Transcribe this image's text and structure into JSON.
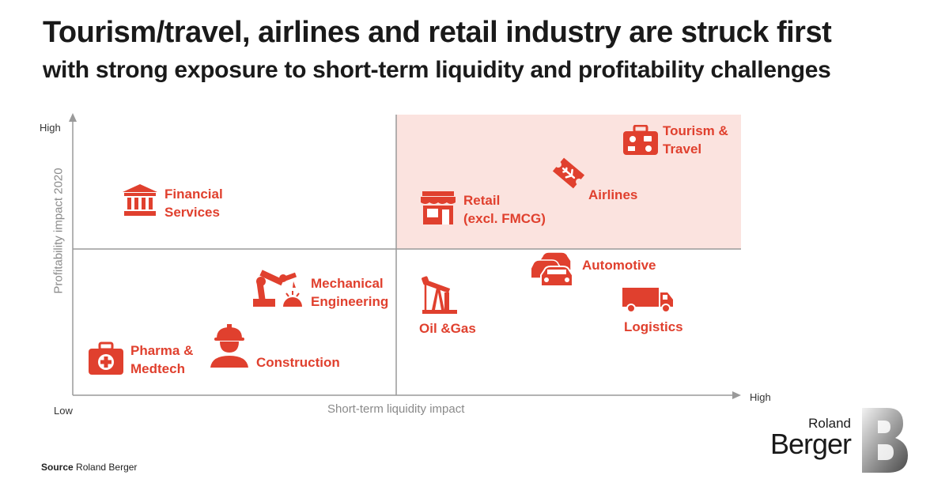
{
  "header": {
    "title": "Tourism/travel, airlines and retail industry are struck first",
    "subtitle": "with strong exposure to short-term liquidity and profitability challenges"
  },
  "matrix": {
    "x_axis": {
      "title": "Short-term liquidity impact",
      "low": "Low",
      "high": "High"
    },
    "y_axis": {
      "title": "Profitability impact 2020",
      "high": "High"
    },
    "highlighted_quadrant": "top-right",
    "colors": {
      "accent": "#e0402e",
      "highlight": "#fbe3df",
      "axis": "#9a9a9a"
    },
    "items": [
      {
        "id": "tourism",
        "label_1": "Tourism &",
        "label_2": "Travel",
        "icon": "suitcase-icon"
      },
      {
        "id": "airlines",
        "label_1": "Airlines",
        "icon": "plane-ticket-icon"
      },
      {
        "id": "retail",
        "label_1": "Retail",
        "label_2": "(excl. FMCG)",
        "icon": "storefront-icon"
      },
      {
        "id": "financial",
        "label_1": "Financial",
        "label_2": "Services",
        "icon": "bank-icon"
      },
      {
        "id": "mechanical",
        "label_1": "Mechanical",
        "label_2": "Engineering",
        "icon": "robot-arm-icon"
      },
      {
        "id": "automotive",
        "label_1": "Automotive",
        "icon": "cars-icon"
      },
      {
        "id": "oilgas",
        "label_1": "Oil &Gas",
        "icon": "oil-pump-icon"
      },
      {
        "id": "logistics",
        "label_1": "Logistics",
        "icon": "truck-icon"
      },
      {
        "id": "pharma",
        "label_1": "Pharma &",
        "label_2": "Medtech",
        "icon": "medical-case-icon"
      },
      {
        "id": "construction",
        "label_1": "Construction",
        "icon": "construction-worker-icon"
      }
    ]
  },
  "footer": {
    "source_label": "Source",
    "source_value": "Roland Berger",
    "logo_line1": "Roland",
    "logo_line2": "Berger"
  }
}
